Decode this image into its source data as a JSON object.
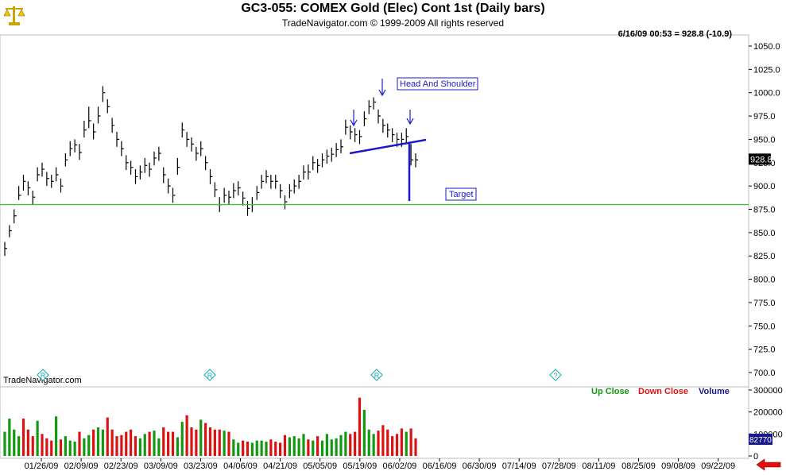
{
  "header": {
    "title": "GC3-055:  COMEX Gold (Elec) Cont 1st  (Daily bars)",
    "subtitle": "TradeNavigator.com © 1999-2009 All rights reserved",
    "quote": "6/16/09 00:53 = 928.8 (-10.9)",
    "watermark": "TradeNavigator.com"
  },
  "annotations": {
    "pattern_label": "Head And Shoulder",
    "target_label": "Target",
    "last_price_label": "928.8",
    "last_volume_label": "82770"
  },
  "legend": {
    "up": "Up Close",
    "down": "Down Close",
    "volume": "Volume"
  },
  "markers": [
    "R",
    "R",
    "R",
    "?"
  ],
  "colors": {
    "up_bar": "#119911",
    "down_bar": "#dd1111",
    "target_line": "#33cc33",
    "annotation": "#1a1acc",
    "marker": "#12a7a7"
  },
  "icons": {
    "logo": "scales-icon",
    "scroll": "left-arrow-icon"
  },
  "chart_data": {
    "type": "bar",
    "price_axis": {
      "ylim": [
        690,
        1062
      ],
      "ticks": [
        700,
        725,
        750,
        775,
        800,
        825,
        850,
        875,
        900,
        925,
        950,
        975,
        1000,
        1025,
        1050
      ]
    },
    "volume_axis": {
      "ylim": [
        0,
        300000
      ],
      "ticks": [
        0,
        100000,
        200000,
        300000
      ]
    },
    "x_tick_labels": [
      "01/26/09",
      "02/09/09",
      "02/23/09",
      "03/09/09",
      "03/23/09",
      "04/06/09",
      "04/21/09",
      "05/05/09",
      "05/19/09",
      "06/02/09",
      "06/16/09",
      "06/30/09",
      "07/14/09",
      "07/28/09",
      "08/11/09",
      "08/25/09",
      "09/08/09",
      "09/22/09"
    ],
    "target_level": 880,
    "last_close": 928.8,
    "close": [
      833,
      852,
      868,
      890,
      905,
      898,
      888,
      912,
      918,
      908,
      905,
      912,
      900,
      928,
      940,
      944,
      936,
      960,
      970,
      958,
      975,
      1000,
      985,
      965,
      950,
      940,
      925,
      920,
      910,
      915,
      922,
      918,
      930,
      935,
      912,
      900,
      890,
      920,
      960,
      950,
      945,
      935,
      940,
      925,
      910,
      896,
      880,
      890,
      888,
      895,
      898,
      887,
      876,
      880,
      893,
      905,
      910,
      905,
      905,
      895,
      883,
      895,
      900,
      905,
      915,
      915,
      925,
      922,
      928,
      932,
      934,
      939,
      942,
      963,
      958,
      955,
      953,
      972,
      985,
      990,
      975,
      965,
      960,
      955,
      950,
      950,
      953,
      928,
      928
    ],
    "high": [
      840,
      858,
      875,
      900,
      912,
      905,
      895,
      920,
      925,
      915,
      912,
      920,
      908,
      935,
      948,
      950,
      945,
      970,
      985,
      967,
      985,
      1007,
      993,
      973,
      958,
      948,
      933,
      927,
      918,
      922,
      930,
      925,
      937,
      942,
      920,
      908,
      898,
      930,
      968,
      958,
      952,
      942,
      948,
      932,
      918,
      904,
      888,
      898,
      895,
      903,
      905,
      894,
      884,
      888,
      900,
      912,
      917,
      912,
      912,
      902,
      890,
      902,
      907,
      912,
      922,
      923,
      932,
      929,
      935,
      939,
      941,
      946,
      950,
      971,
      965,
      962,
      960,
      980,
      992,
      995,
      982,
      972,
      967,
      962,
      957,
      957,
      962,
      945,
      935
    ],
    "low": [
      825,
      845,
      860,
      885,
      895,
      890,
      880,
      905,
      910,
      900,
      898,
      905,
      893,
      921,
      932,
      936,
      928,
      952,
      962,
      950,
      967,
      990,
      978,
      957,
      942,
      932,
      917,
      912,
      902,
      907,
      914,
      910,
      922,
      927,
      903,
      892,
      882,
      912,
      952,
      942,
      937,
      927,
      932,
      917,
      902,
      888,
      872,
      882,
      880,
      887,
      890,
      879,
      868,
      872,
      885,
      897,
      903,
      897,
      897,
      887,
      875,
      887,
      892,
      897,
      907,
      907,
      917,
      914,
      920,
      924,
      926,
      931,
      935,
      955,
      950,
      947,
      945,
      964,
      977,
      982,
      967,
      957,
      952,
      947,
      942,
      942,
      945,
      922,
      920
    ],
    "volume": [
      110000,
      170000,
      120000,
      90000,
      170000,
      120000,
      90000,
      160000,
      100000,
      80000,
      70000,
      180000,
      75000,
      90000,
      70000,
      65000,
      110000,
      80000,
      95000,
      120000,
      130000,
      120000,
      175000,
      120000,
      90000,
      95000,
      110000,
      120000,
      90000,
      80000,
      100000,
      110000,
      115000,
      80000,
      130000,
      110000,
      110000,
      85000,
      155000,
      185000,
      130000,
      120000,
      165000,
      150000,
      130000,
      120000,
      120000,
      115000,
      110000,
      75000,
      60000,
      70000,
      65000,
      60000,
      70000,
      70000,
      65000,
      75000,
      65000,
      60000,
      95000,
      85000,
      90000,
      80000,
      100000,
      75000,
      70000,
      90000,
      70000,
      100000,
      75000,
      80000,
      95000,
      110000,
      100000,
      110000,
      265000,
      210000,
      120000,
      100000,
      115000,
      140000,
      120000,
      90000,
      100000,
      125000,
      110000,
      125000,
      80000
    ],
    "up_close": [
      true,
      true,
      true,
      true,
      false,
      false,
      false,
      true,
      false,
      false,
      false,
      true,
      false,
      true,
      true,
      true,
      false,
      true,
      true,
      false,
      true,
      true,
      false,
      false,
      false,
      false,
      false,
      false,
      false,
      true,
      true,
      false,
      true,
      true,
      false,
      false,
      false,
      true,
      true,
      false,
      false,
      false,
      true,
      false,
      false,
      false,
      false,
      true,
      false,
      true,
      true,
      false,
      false,
      true,
      true,
      true,
      true,
      false,
      false,
      false,
      false,
      true,
      true,
      true,
      true,
      false,
      true,
      false,
      true,
      true,
      true,
      true,
      true,
      true,
      false,
      false,
      false,
      true,
      true,
      true,
      false,
      false,
      false,
      false,
      false,
      false,
      true,
      false,
      false
    ]
  }
}
